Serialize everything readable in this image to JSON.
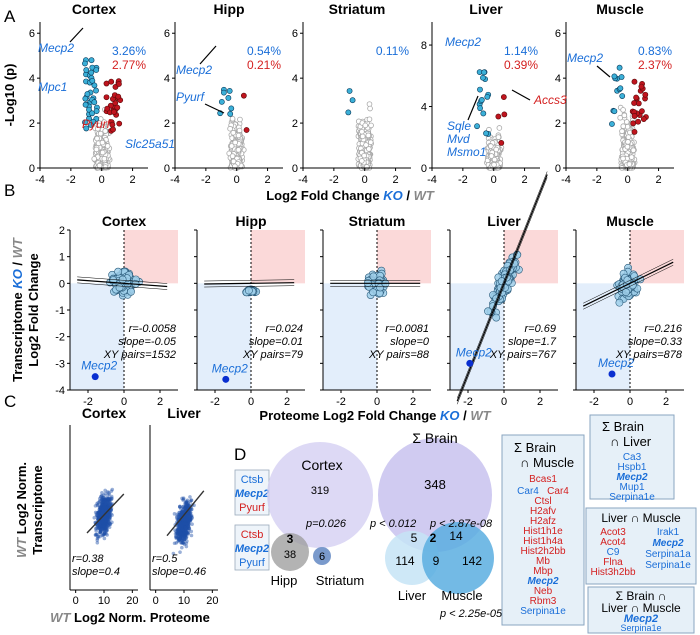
{
  "panels": {
    "A": "A",
    "B": "B",
    "C": "C",
    "D": "D"
  },
  "colors": {
    "blue": "#1a6ed8",
    "red": "#d42020",
    "grey": "#a8a8a8",
    "cyan": "#3bb0d8",
    "pink": "#fbd9d9",
    "lightblue": "#e3eefb",
    "boxbg": "#e6f0f8"
  },
  "panelA": {
    "ylabel": "-Log10 (p)",
    "xlabel_pre": "Log2 Fold Change ",
    "xlabel_ko": "KO",
    "xlabel_sep": " / ",
    "xlabel_wt": "WT",
    "xticks": [
      "-4",
      "-2",
      "0",
      "2"
    ],
    "subplots": [
      {
        "title": "Cortex",
        "yticks": [
          "0",
          "2",
          "4",
          "6"
        ],
        "pct_blue": "3.26%",
        "pct_red": "2.77%",
        "labels": [
          {
            "t": "Mecp2",
            "c": "blue"
          },
          {
            "t": "Mpc1",
            "c": "blue"
          },
          {
            "t": "Pyurf",
            "c": "red"
          },
          {
            "t": "Slc25a51",
            "c": "blue"
          }
        ]
      },
      {
        "title": "Hipp",
        "yticks": [
          "0",
          "2",
          "4",
          "6"
        ],
        "pct_blue": "0.54%",
        "pct_red": "0.21%",
        "labels": [
          {
            "t": "Mecp2",
            "c": "blue"
          },
          {
            "t": "Pyurf",
            "c": "blue"
          }
        ]
      },
      {
        "title": "Striatum",
        "yticks": [
          "0",
          "2",
          "4",
          "6"
        ],
        "pct_blue": "0.11%",
        "pct_red": "",
        "labels": []
      },
      {
        "title": "Liver",
        "yticks": [
          "0",
          "4",
          "8"
        ],
        "pct_blue": "1.14%",
        "pct_red": "0.39%",
        "labels": [
          {
            "t": "Mecp2",
            "c": "blue"
          },
          {
            "t": "Accs3",
            "c": "red"
          },
          {
            "t": "Sqle",
            "c": "blue"
          },
          {
            "t": "Mvd",
            "c": "blue"
          },
          {
            "t": "Msmo1",
            "c": "blue"
          }
        ]
      },
      {
        "title": "Muscle",
        "yticks": [
          "0",
          "2",
          "4",
          "6"
        ],
        "pct_blue": "0.83%",
        "pct_red": "2.37%",
        "labels": [
          {
            "t": "Mecp2",
            "c": "blue"
          }
        ]
      }
    ]
  },
  "panelB": {
    "ylabel1_pre": "Transcriptome ",
    "ylabel1_ko": "KO",
    "ylabel1_sep": " / ",
    "ylabel1_wt": "WT",
    "ylabel2": "Log2 Fold Change",
    "xlabel_pre": "Proteome Log2 Fold Change ",
    "xlabel_ko": "KO",
    "xlabel_sep": " / ",
    "xlabel_wt": "WT",
    "yticks": [
      "2",
      "1",
      "0",
      "-1",
      "-2",
      "-3",
      "-4"
    ],
    "xticks": [
      "-2",
      "0",
      "2"
    ],
    "mecp2": "Mecp2",
    "subplots": [
      {
        "title": "Cortex",
        "r": "r=-0.0058",
        "slope": "slope=-0.05",
        "pairs": "XY pairs=1532",
        "mecp2_x": -1.6,
        "mecp2_y": -3.5,
        "fit_slope": -0.05
      },
      {
        "title": "Hipp",
        "r": "r=0.024",
        "slope": "slope=0.01",
        "pairs": "XY pairs=79",
        "mecp2_x": -1.4,
        "mecp2_y": -3.6,
        "fit_slope": 0.01
      },
      {
        "title": "Striatum",
        "r": "r=0.0081",
        "slope": "slope=0",
        "pairs": "XY pairs=88",
        "mecp2_x": null,
        "mecp2_y": null,
        "fit_slope": 0
      },
      {
        "title": "Liver",
        "r": "r=0.69",
        "slope": "slope=1.7",
        "pairs": "XY pairs=767",
        "mecp2_x": -1.9,
        "mecp2_y": -3.0,
        "fit_slope": 1.7
      },
      {
        "title": "Muscle",
        "r": "r=0.216",
        "slope": "slope=0.33",
        "pairs": "XY pairs=878",
        "mecp2_x": -1.0,
        "mecp2_y": -3.4,
        "fit_slope": 0.33
      }
    ]
  },
  "panelC": {
    "ylabel_wt": "WT",
    "ylabel_rest": " Log2 Norm.",
    "ylabel2": "Transcriptome",
    "xlabel_wt": "WT",
    "xlabel_rest": " Log2 Norm. Proteome",
    "xticks": [
      "0",
      "10",
      "20"
    ],
    "subplots": [
      {
        "title": "Cortex",
        "r": "r=0.38",
        "slope": "slope=0.4"
      },
      {
        "title": "Liver",
        "r": "r=0.5",
        "slope": "slope=0.46"
      }
    ]
  },
  "panelD": {
    "genes_box1": [
      {
        "t": "Ctsb",
        "c": "blue"
      },
      {
        "t": "Mecp2",
        "c": "blue",
        "b": true
      },
      {
        "t": "Pyurf",
        "c": "red"
      }
    ],
    "genes_box2": [
      {
        "t": "Ctsb",
        "c": "red"
      },
      {
        "t": "Mecp2",
        "c": "blue",
        "b": true
      },
      {
        "t": "Pyurf",
        "c": "blue"
      }
    ],
    "venn1": {
      "cortex_label": "Cortex",
      "cortex_n": "319",
      "p": "p=0.026",
      "hipp_label": "Hipp",
      "striatum_label": "Striatum",
      "n3": "3",
      "n38": "38",
      "n6": "6"
    },
    "venn2": {
      "title": "Σ Brain",
      "brain_n": "348",
      "p1": "p < 0.012",
      "p2": "p < 2.87e-08",
      "p3": "p < 2.25e-05",
      "n5": "5",
      "n2": "2",
      "n14": "14",
      "n114": "114",
      "n9": "9",
      "n142": "142",
      "liver_label": "Liver",
      "muscle_label": "Muscle"
    }
  },
  "boxes": {
    "brain_muscle": {
      "title1": "Σ Brain",
      "title2": "∩ Muscle",
      "genes": [
        {
          "t": "Bcas1",
          "c": "red"
        },
        {
          "t": "Car4",
          "c": "blue"
        },
        {
          "t": "Car4",
          "c": "red"
        },
        {
          "t": "Ctsl",
          "c": "red"
        },
        {
          "t": "H2afv",
          "c": "red"
        },
        {
          "t": "H2afz",
          "c": "red"
        },
        {
          "t": "Hist1h1e",
          "c": "red"
        },
        {
          "t": "Hist1h4a",
          "c": "red"
        },
        {
          "t": "Hist2h2bb",
          "c": "red"
        },
        {
          "t": "Mb",
          "c": "red"
        },
        {
          "t": "Mbp",
          "c": "red"
        },
        {
          "t": "Mecp2",
          "c": "blue",
          "b": true
        },
        {
          "t": "Neb",
          "c": "red"
        },
        {
          "t": "Rbm3",
          "c": "red"
        },
        {
          "t": "Serpina1e",
          "c": "blue"
        }
      ]
    },
    "brain_liver": {
      "title1": "Σ Brain",
      "title2": "∩ Liver",
      "genes": [
        {
          "t": "Ca3",
          "c": "blue"
        },
        {
          "t": "Hspb1",
          "c": "blue"
        },
        {
          "t": "Mecp2",
          "c": "blue",
          "b": true
        },
        {
          "t": "Mup1",
          "c": "blue"
        },
        {
          "t": "Serpina1e",
          "c": "blue"
        }
      ]
    },
    "liver_muscle": {
      "title": "Liver ∩ Muscle",
      "left": [
        {
          "t": "Acot3",
          "c": "red"
        },
        {
          "t": "Acot4",
          "c": "red"
        },
        {
          "t": "C9",
          "c": "blue"
        },
        {
          "t": "Flna",
          "c": "red"
        },
        {
          "t": "Hist3h2bb",
          "c": "red"
        }
      ],
      "right": [
        {
          "t": "Irak1",
          "c": "blue"
        },
        {
          "t": "Mecp2",
          "c": "blue",
          "b": true
        },
        {
          "t": "Serpina1a",
          "c": "blue"
        },
        {
          "t": "Serpina1e",
          "c": "blue"
        }
      ]
    },
    "all": {
      "title1": "Σ Brain ∩",
      "title2": "Liver ∩ Muscle",
      "genes": [
        {
          "t": "Mecp2",
          "c": "blue",
          "b": true
        },
        {
          "t": "Serpina1e",
          "c": "blue"
        }
      ]
    }
  }
}
